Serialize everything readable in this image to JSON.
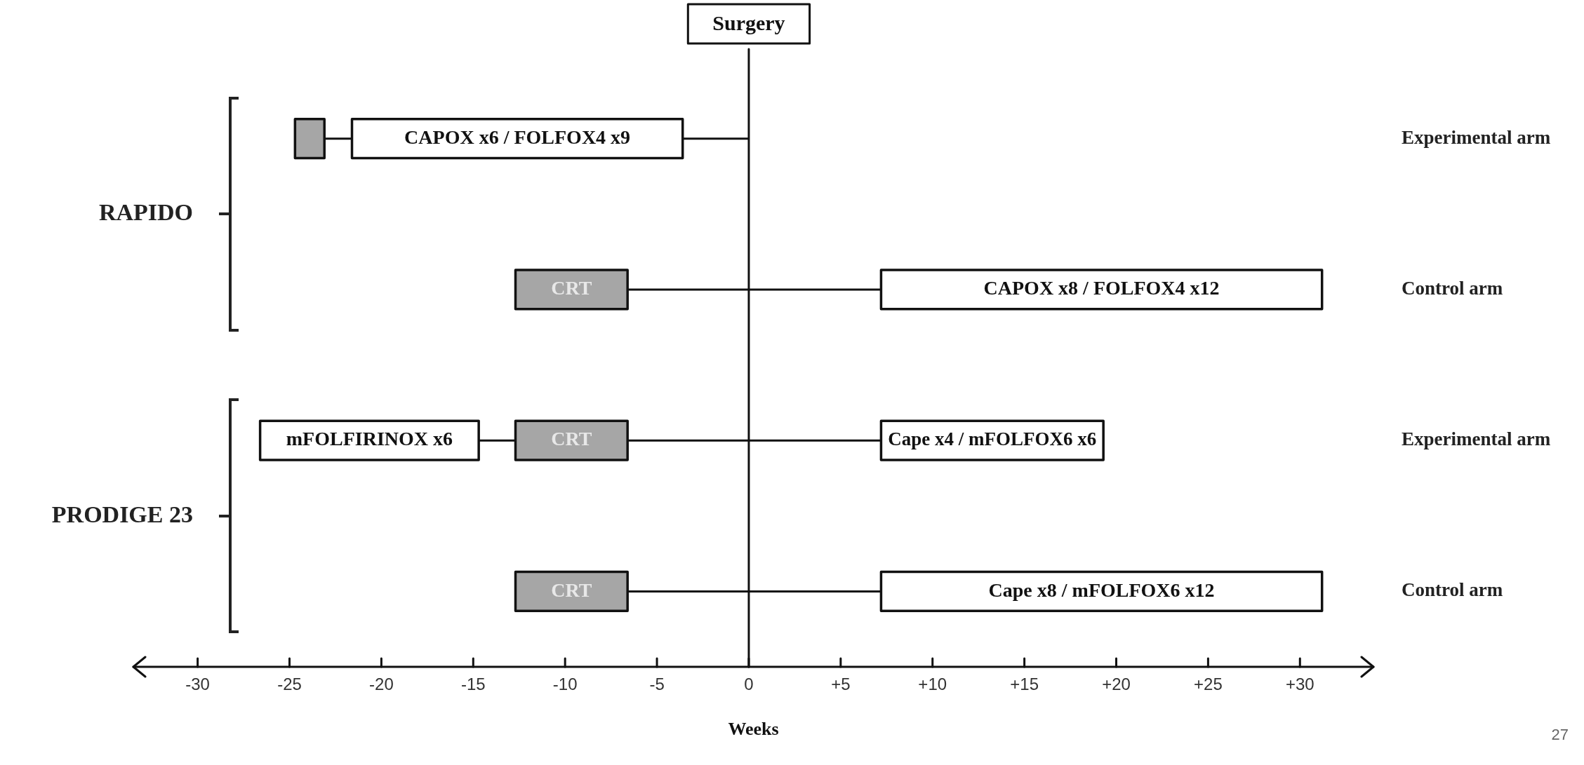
{
  "chart_data": {
    "type": "bar",
    "orientation": "horizontal",
    "xlabel": "Weeks",
    "categories": [
      "Experimental arm",
      "Control arm",
      "Experimental arm",
      "Control arm"
    ],
    "series": [
      {
        "color": "#a6a6a6",
        "base": [
          -24.7,
          null,
          null,
          null
        ],
        "values": [
          1.6,
          null,
          null,
          null
        ],
        "value_labels": [
          null,
          null,
          null,
          null
        ]
      },
      {
        "color": "#ffffff",
        "base": [
          -21.6,
          null,
          -26.6,
          null
        ],
        "values": [
          18,
          null,
          11.9,
          null
        ],
        "value_labels": [
          "CAPOX x6 / FOLFOX4 x9",
          null,
          "mFOLFIRINOX x6",
          null
        ]
      },
      {
        "color": "#a6a6a6",
        "base": [
          null,
          -12.7,
          -12.7,
          -12.7
        ],
        "values": [
          null,
          6.1,
          6.1,
          6.1
        ],
        "value_labels": [
          null,
          "CRT",
          "CRT",
          "CRT"
        ]
      },
      {
        "color": "#ffffff",
        "base": [
          null,
          7.2,
          7.2,
          7.2
        ],
        "values": [
          null,
          24,
          12.1,
          24
        ],
        "value_labels": [
          null,
          "CAPOX x8 / FOLFOX4 x12",
          "Cape x4 / mFOLFOX6 x6",
          "Cape x8 / mFOLFOX6 x12"
        ]
      }
    ],
    "xlim": [
      -33.5,
      34
    ],
    "xticks": [
      -30,
      -25,
      -20,
      -15,
      -10,
      -5,
      0,
      {
        "value": 5,
        "label": "+5"
      },
      {
        "value": 10,
        "label": "+10"
      },
      {
        "value": 15,
        "label": "+15"
      },
      {
        "value": 20,
        "label": "+20"
      },
      {
        "value": 25,
        "label": "+25"
      },
      {
        "value": 30,
        "label": "+30"
      }
    ],
    "ref_lines": [
      {
        "axis": "x",
        "value": 0,
        "label": "Surgery"
      }
    ],
    "annotations": [
      "RAPIDO",
      "PRODIGE 23",
      "27"
    ],
    "grid": false,
    "legend": false
  }
}
